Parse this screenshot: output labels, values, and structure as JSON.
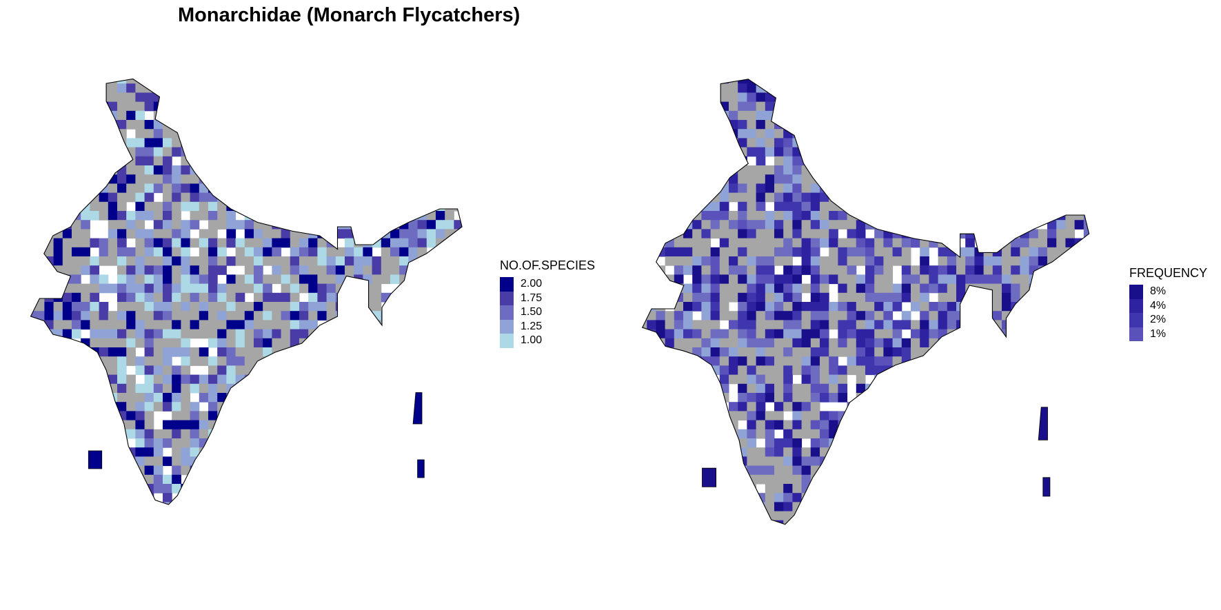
{
  "title": "Monarchidae (Monarch Flycatchers)",
  "colors": {
    "grid_absent": "#a6a6a6",
    "border": "#000000"
  },
  "left_map": {
    "legend": {
      "title": "NO.OF.SPECIES",
      "items": [
        {
          "label": "2.00",
          "color": "#00008b"
        },
        {
          "label": "1.75",
          "color": "#4a3ca6"
        },
        {
          "label": "1.50",
          "color": "#6d6cc0"
        },
        {
          "label": "1.25",
          "color": "#8fa3d6"
        },
        {
          "label": "1.00",
          "color": "#add8e6"
        }
      ]
    }
  },
  "right_map": {
    "legend": {
      "title": "FREQUENCY",
      "items": [
        {
          "label": "8%",
          "color": "#1a0f8a"
        },
        {
          "label": "4%",
          "color": "#2e22a0"
        },
        {
          "label": "2%",
          "color": "#3f36ae"
        },
        {
          "label": "1%",
          "color": "#5a51bb"
        }
      ]
    }
  }
}
